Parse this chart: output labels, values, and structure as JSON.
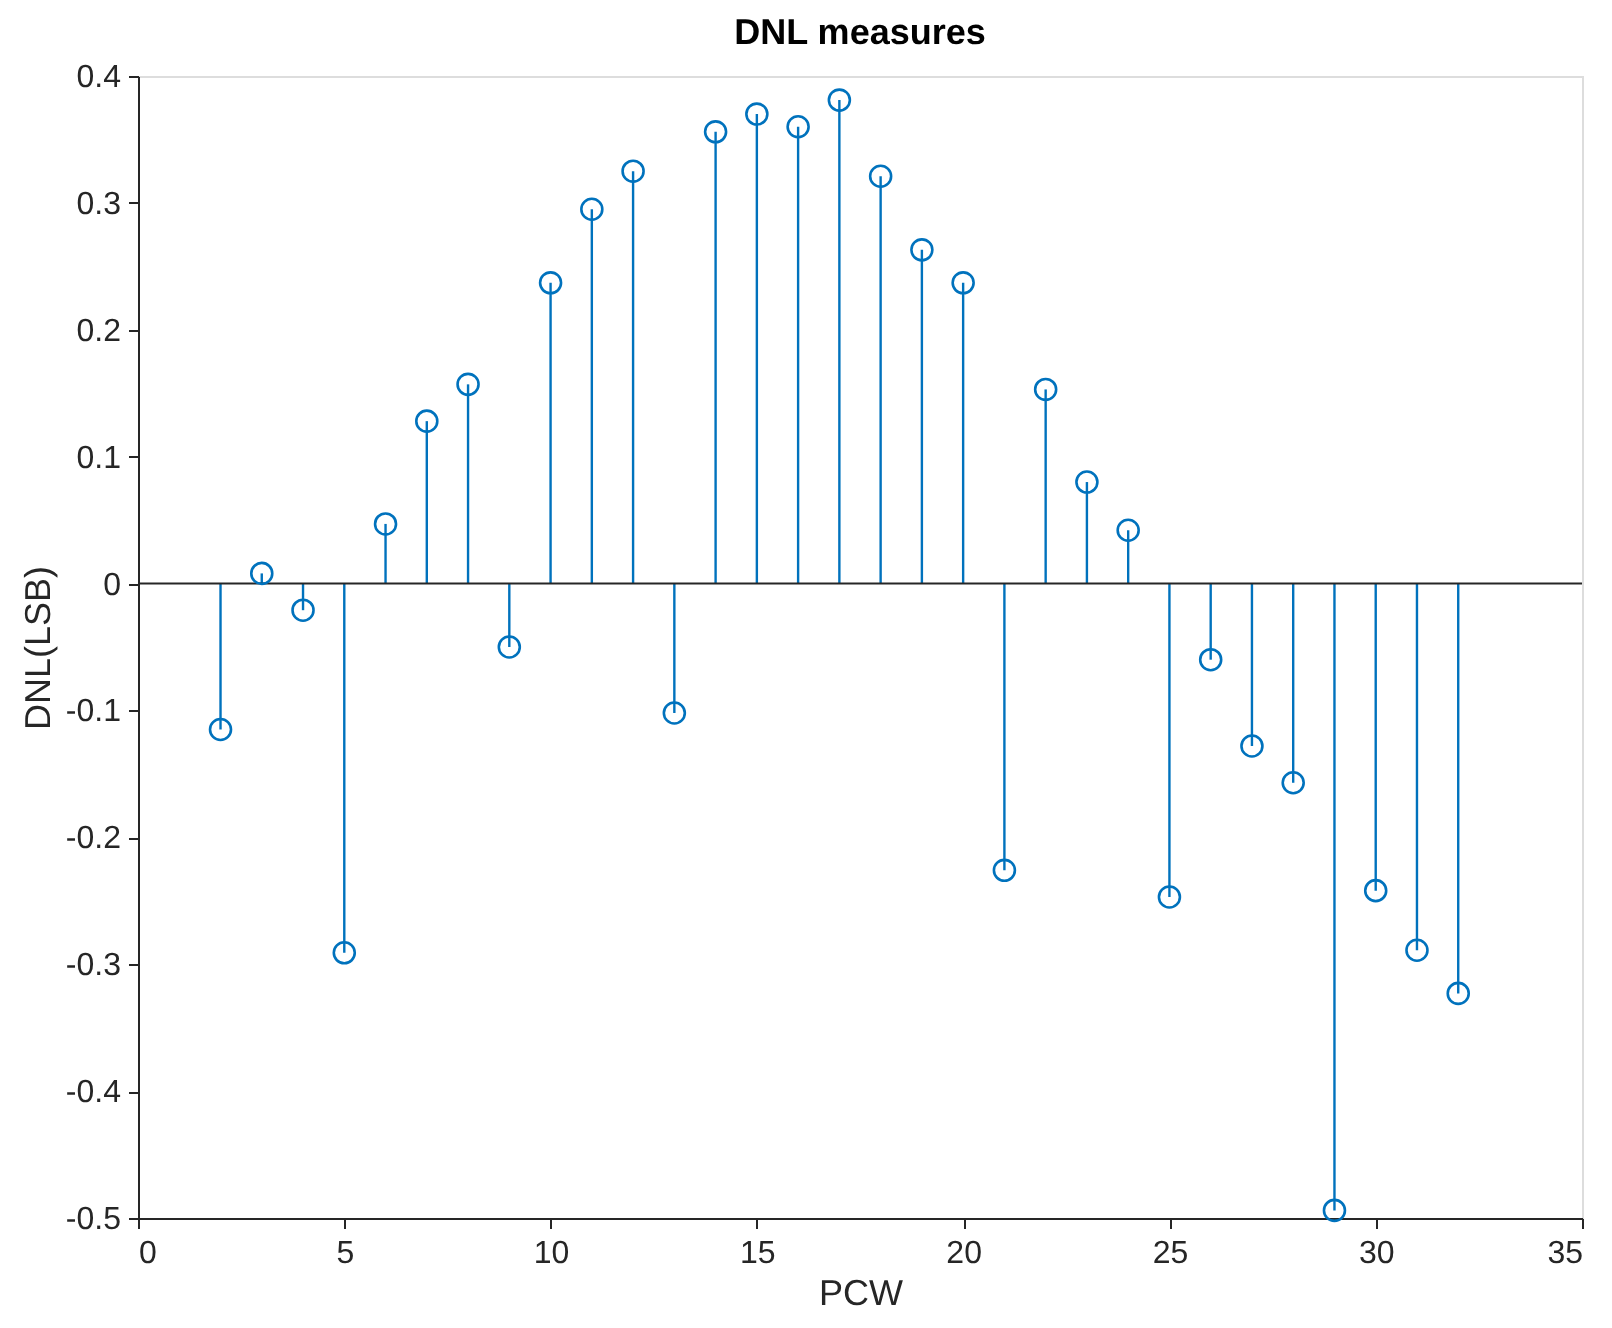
{
  "chart_data": {
    "type": "lollipop",
    "title": "DNL measures",
    "xlabel": "PCW",
    "ylabel": "DNL(LSB)",
    "x": [
      2,
      3,
      4,
      5,
      6,
      7,
      8,
      9,
      10,
      11,
      12,
      13,
      14,
      15,
      16,
      17,
      18,
      19,
      20,
      21,
      22,
      23,
      24,
      25,
      26,
      27,
      28,
      29,
      30,
      31,
      32
    ],
    "values": [
      -0.115,
      0.008,
      -0.021,
      -0.291,
      0.047,
      0.128,
      0.157,
      -0.05,
      0.237,
      0.295,
      0.325,
      -0.102,
      0.356,
      0.37,
      0.36,
      0.381,
      0.321,
      0.263,
      0.237,
      -0.226,
      0.153,
      0.08,
      0.042,
      -0.247,
      -0.06,
      -0.128,
      -0.157,
      -0.494,
      -0.242,
      -0.289,
      -0.323
    ],
    "color": "#0072bd",
    "marker": "circle",
    "xlim": [
      0,
      35
    ],
    "xticks": [
      0,
      5,
      10,
      15,
      20,
      25,
      30,
      35
    ],
    "ylim": [
      -0.5,
      0.4
    ],
    "yticks": [
      -0.5,
      -0.4,
      -0.3,
      -0.2,
      -0.1,
      0,
      0.1,
      0.2,
      0.3,
      0.4
    ],
    "ref_lines": [
      {
        "axis": "y",
        "value": 0,
        "color": "#262626",
        "line_style": "solid"
      }
    ],
    "grid": false
  }
}
